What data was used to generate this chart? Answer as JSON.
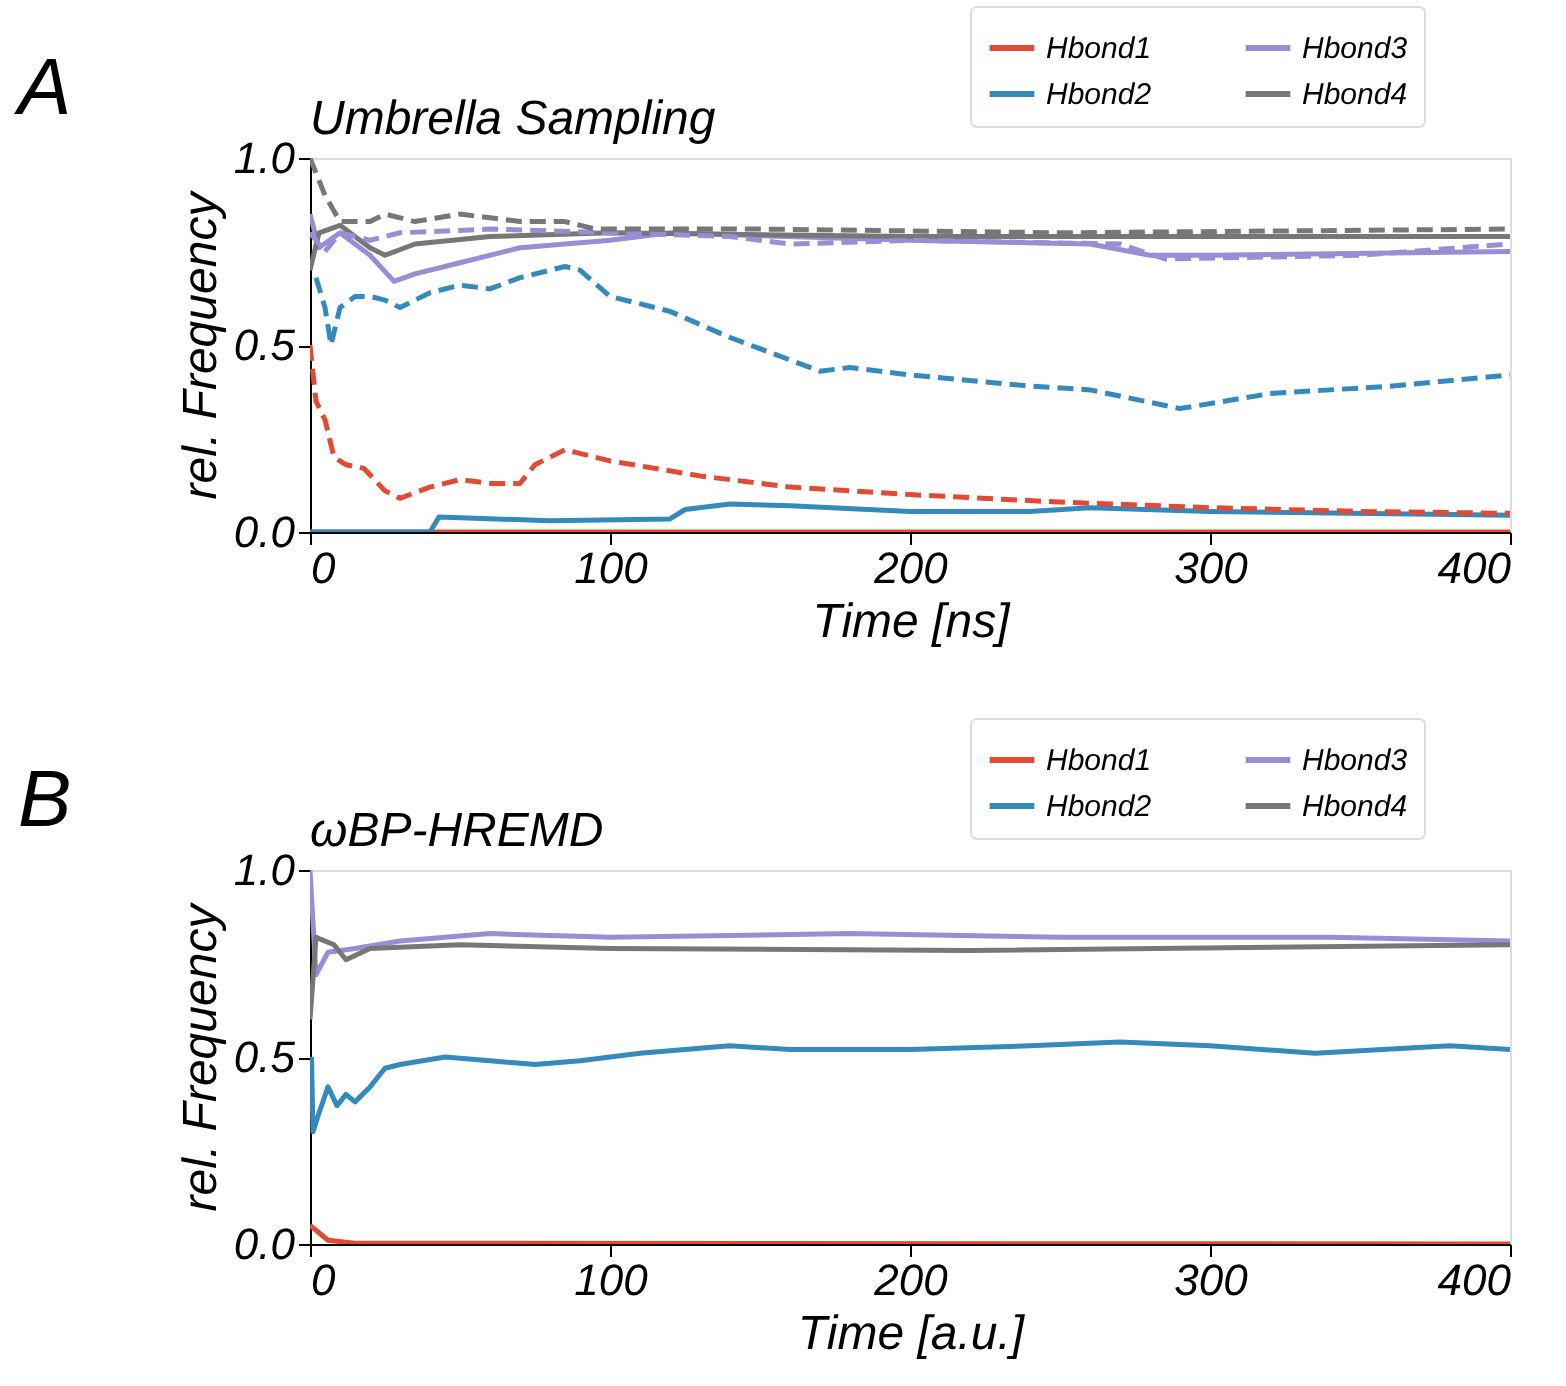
{
  "chart_data": [
    {
      "type": "line",
      "title": "Umbrella Sampling",
      "xlabel": "Time [ns]",
      "ylabel": "rel. Frequency",
      "annotations": [
        "A"
      ],
      "xlim": [
        0,
        400
      ],
      "xticks": [
        0,
        100,
        200,
        300,
        400
      ],
      "ylim": [
        0,
        1
      ],
      "yticks": [
        {
          "value": 0,
          "label": "0.0"
        },
        {
          "value": 0.5,
          "label": "0.5"
        },
        {
          "value": 1,
          "label": "1.0"
        }
      ],
      "grid": false,
      "legend": "top right",
      "marker": "none",
      "series": [
        {
          "name": "Hbond1",
          "color": "#e24a33",
          "line_style": "solid",
          "x": [
            0,
            100,
            200,
            300,
            400
          ],
          "values": [
            0,
            0,
            0,
            0,
            0
          ]
        },
        {
          "name": "Hbond2",
          "color": "#348abd",
          "line_style": "solid",
          "x": [
            0,
            40,
            43,
            80,
            120,
            125,
            140,
            160,
            200,
            240,
            260,
            300,
            400
          ],
          "values": [
            0,
            0,
            0.04,
            0.03,
            0.035,
            0.06,
            0.075,
            0.07,
            0.055,
            0.055,
            0.065,
            0.055,
            0.045
          ]
        },
        {
          "name": "Hbond3",
          "color": "#988ed5",
          "line_style": "solid",
          "x": [
            0,
            3,
            10,
            20,
            28,
            35,
            50,
            70,
            100,
            120,
            200,
            260,
            280,
            300,
            400
          ],
          "values": [
            0.85,
            0.76,
            0.8,
            0.74,
            0.67,
            0.69,
            0.72,
            0.76,
            0.78,
            0.8,
            0.78,
            0.77,
            0.74,
            0.74,
            0.75
          ]
        },
        {
          "name": "Hbond4",
          "color": "#777777",
          "line_style": "solid",
          "x": [
            0,
            3,
            10,
            20,
            25,
            35,
            60,
            100,
            200,
            400
          ],
          "values": [
            0.7,
            0.8,
            0.82,
            0.76,
            0.74,
            0.77,
            0.79,
            0.8,
            0.79,
            0.79
          ]
        },
        {
          "color": "#e24a33",
          "line_style": "dashed",
          "x": [
            0,
            2,
            5,
            8,
            12,
            18,
            25,
            30,
            40,
            50,
            60,
            70,
            75,
            85,
            100,
            130,
            160,
            200,
            250,
            300,
            350,
            400
          ],
          "values": [
            0.5,
            0.35,
            0.3,
            0.2,
            0.18,
            0.17,
            0.11,
            0.09,
            0.12,
            0.14,
            0.13,
            0.13,
            0.18,
            0.22,
            0.19,
            0.15,
            0.12,
            0.1,
            0.08,
            0.065,
            0.055,
            0.05
          ]
        },
        {
          "color": "#348abd",
          "line_style": "dashed",
          "x": [
            2,
            5,
            7,
            10,
            15,
            20,
            25,
            30,
            40,
            50,
            60,
            70,
            85,
            90,
            100,
            120,
            140,
            170,
            180,
            200,
            240,
            260,
            290,
            320,
            360,
            400
          ],
          "values": [
            0.68,
            0.6,
            0.5,
            0.6,
            0.63,
            0.63,
            0.62,
            0.6,
            0.64,
            0.66,
            0.65,
            0.68,
            0.71,
            0.7,
            0.63,
            0.59,
            0.52,
            0.43,
            0.44,
            0.42,
            0.39,
            0.38,
            0.33,
            0.37,
            0.39,
            0.42
          ]
        },
        {
          "color": "#988ed5",
          "line_style": "dashed",
          "x": [
            0,
            5,
            10,
            20,
            30,
            60,
            100,
            140,
            160,
            200,
            270,
            285,
            350,
            400
          ],
          "values": [
            0.8,
            0.75,
            0.8,
            0.78,
            0.8,
            0.81,
            0.8,
            0.79,
            0.77,
            0.78,
            0.77,
            0.73,
            0.74,
            0.77
          ]
        },
        {
          "color": "#777777",
          "line_style": "dashed",
          "x": [
            0,
            5,
            10,
            20,
            25,
            35,
            50,
            70,
            85,
            95,
            150,
            250,
            400
          ],
          "values": [
            1.0,
            0.9,
            0.83,
            0.83,
            0.85,
            0.83,
            0.85,
            0.83,
            0.83,
            0.81,
            0.81,
            0.8,
            0.81
          ]
        }
      ]
    },
    {
      "type": "line",
      "title": "ωBP-HREMD",
      "xlabel": "Time [a.u.]",
      "ylabel": "rel. Frequency",
      "annotations": [
        "B"
      ],
      "xlim": [
        0,
        400
      ],
      "xticks": [
        0,
        100,
        200,
        300,
        400
      ],
      "ylim": [
        0,
        1
      ],
      "yticks": [
        {
          "value": 0,
          "label": "0.0"
        },
        {
          "value": 0.5,
          "label": "0.5"
        },
        {
          "value": 1,
          "label": "1.0"
        }
      ],
      "grid": false,
      "legend": "top right",
      "marker": "none",
      "series": [
        {
          "name": "Hbond1",
          "color": "#e24a33",
          "line_style": "solid",
          "x": [
            0,
            3,
            6,
            15,
            400
          ],
          "values": [
            0.05,
            0.03,
            0.01,
            0.002,
            0
          ]
        },
        {
          "name": "Hbond2",
          "color": "#348abd",
          "line_style": "solid",
          "x": [
            0.5,
            1,
            3,
            6,
            9,
            12,
            15,
            20,
            25,
            30,
            45,
            60,
            75,
            90,
            110,
            140,
            160,
            200,
            240,
            270,
            300,
            335,
            380,
            400
          ],
          "values": [
            0.5,
            0.3,
            0.35,
            0.42,
            0.37,
            0.4,
            0.38,
            0.42,
            0.47,
            0.48,
            0.5,
            0.49,
            0.48,
            0.49,
            0.51,
            0.53,
            0.52,
            0.52,
            0.53,
            0.54,
            0.53,
            0.51,
            0.53,
            0.52
          ]
        },
        {
          "name": "Hbond3",
          "color": "#988ed5",
          "line_style": "solid",
          "x": [
            0,
            2,
            6,
            15,
            30,
            60,
            100,
            180,
            250,
            340,
            400
          ],
          "values": [
            1.0,
            0.72,
            0.78,
            0.79,
            0.81,
            0.83,
            0.82,
            0.83,
            0.82,
            0.82,
            0.81
          ]
        },
        {
          "name": "Hbond4",
          "color": "#777777",
          "line_style": "solid",
          "x": [
            0,
            2,
            8,
            12,
            20,
            50,
            100,
            220,
            400
          ],
          "values": [
            0.6,
            0.82,
            0.8,
            0.76,
            0.79,
            0.8,
            0.79,
            0.785,
            0.8
          ]
        }
      ]
    }
  ]
}
